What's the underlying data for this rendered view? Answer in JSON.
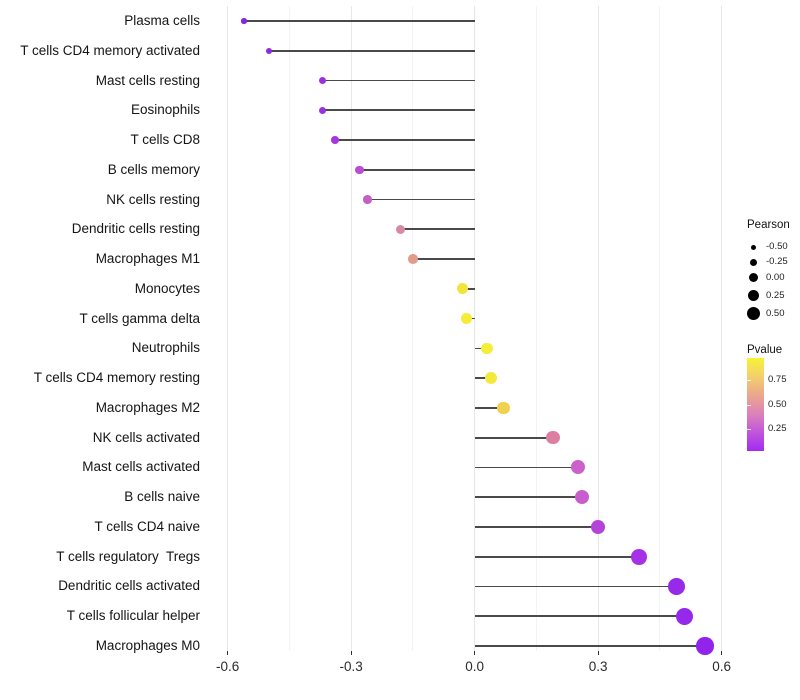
{
  "chart_data": {
    "type": "scatter",
    "variant": "lollipop",
    "title": "",
    "xlabel": "",
    "ylabel": "",
    "x_tick_values": [
      -0.6,
      -0.3,
      0.0,
      0.3,
      0.6
    ],
    "x_tick_labels": [
      "-0.6",
      "-0.3",
      "0.0",
      "0.3",
      "0.6"
    ],
    "x_minor_tick_values": [
      -0.45,
      -0.15,
      0.15,
      0.45
    ],
    "xlim": [
      -0.6502,
      0.6372
    ],
    "grid": true,
    "baseline": 0.0,
    "points": [
      {
        "label": "Plasma cells",
        "pearson": -0.56,
        "color": "#8527E1"
      },
      {
        "label": "T cells CD4 memory activated",
        "pearson": -0.5,
        "color": "#8E2BDD"
      },
      {
        "label": "Mast cells resting",
        "pearson": -0.37,
        "color": "#9B30DF"
      },
      {
        "label": "Eosinophils",
        "pearson": -0.37,
        "color": "#9C31E0"
      },
      {
        "label": "T cells CD8",
        "pearson": -0.34,
        "color": "#A637DC"
      },
      {
        "label": "B cells memory",
        "pearson": -0.28,
        "color": "#B94ED4"
      },
      {
        "label": "NK cells resting",
        "pearson": -0.26,
        "color": "#C260C6"
      },
      {
        "label": "Dendritic cells resting",
        "pearson": -0.18,
        "color": "#D888A7"
      },
      {
        "label": "Macrophages M1",
        "pearson": -0.15,
        "color": "#E19B89"
      },
      {
        "label": "Monocytes",
        "pearson": -0.03,
        "color": "#F2E43A"
      },
      {
        "label": "T cells gamma delta",
        "pearson": -0.02,
        "color": "#F4EC38"
      },
      {
        "label": "Neutrophils",
        "pearson": 0.03,
        "color": "#F5EE38"
      },
      {
        "label": "T cells CD4 memory resting",
        "pearson": 0.04,
        "color": "#F3E93B"
      },
      {
        "label": "Macrophages M2",
        "pearson": 0.07,
        "color": "#F0D14E"
      },
      {
        "label": "NK cells activated",
        "pearson": 0.19,
        "color": "#DC7FA3"
      },
      {
        "label": "Mast cells activated",
        "pearson": 0.25,
        "color": "#CC61CB"
      },
      {
        "label": "B cells naive",
        "pearson": 0.26,
        "color": "#C85ECD"
      },
      {
        "label": "T cells CD4 naive",
        "pearson": 0.3,
        "color": "#B443D9"
      },
      {
        "label": "T cells regulatory  Tregs",
        "pearson": 0.4,
        "color": "#A532E6"
      },
      {
        "label": "Dendritic cells activated",
        "pearson": 0.49,
        "color": "#9729E9"
      },
      {
        "label": "T cells follicular helper",
        "pearson": 0.51,
        "color": "#9528EA"
      },
      {
        "label": "Macrophages M0",
        "pearson": 0.56,
        "color": "#9123EB"
      }
    ],
    "size_legend": {
      "title": "Pearson",
      "entry_labels": [
        "-0.50",
        "-0.25",
        "0.00",
        "0.25",
        "0.50"
      ],
      "entry_values": [
        -0.5,
        -0.25,
        0.0,
        0.25,
        0.5
      ],
      "dot_color": "#000000"
    },
    "color_legend": {
      "title": "Pvalue",
      "tick_labels": [
        "0.75",
        "0.50",
        "0.25"
      ],
      "tick_values": [
        0.75,
        0.5,
        0.25
      ],
      "gradient_top_to_bottom": [
        "#F6F335",
        "#F3CF6D",
        "#EBA68D",
        "#DC82B9",
        "#C155DB",
        "#A22BF2"
      ]
    },
    "style_colors": {
      "stem": "#4a4a4a",
      "grid_major": "#e7e7e7",
      "grid_minor": "#f3f3f3",
      "axis_text": "#2b2b2b",
      "background": "#ffffff"
    }
  }
}
